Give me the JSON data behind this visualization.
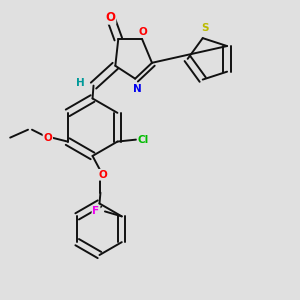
{
  "bg_color": "#e0e0e0",
  "bond_color": "#111111",
  "bond_width": 1.4,
  "atom_colors": {
    "O": "#ff0000",
    "N": "#0000ee",
    "S": "#bbbb00",
    "Cl": "#00bb00",
    "F": "#ee00ee",
    "H": "#009999",
    "C": "#111111"
  },
  "font_size": 7.5,
  "figsize": [
    3.0,
    3.0
  ],
  "dpi": 100
}
